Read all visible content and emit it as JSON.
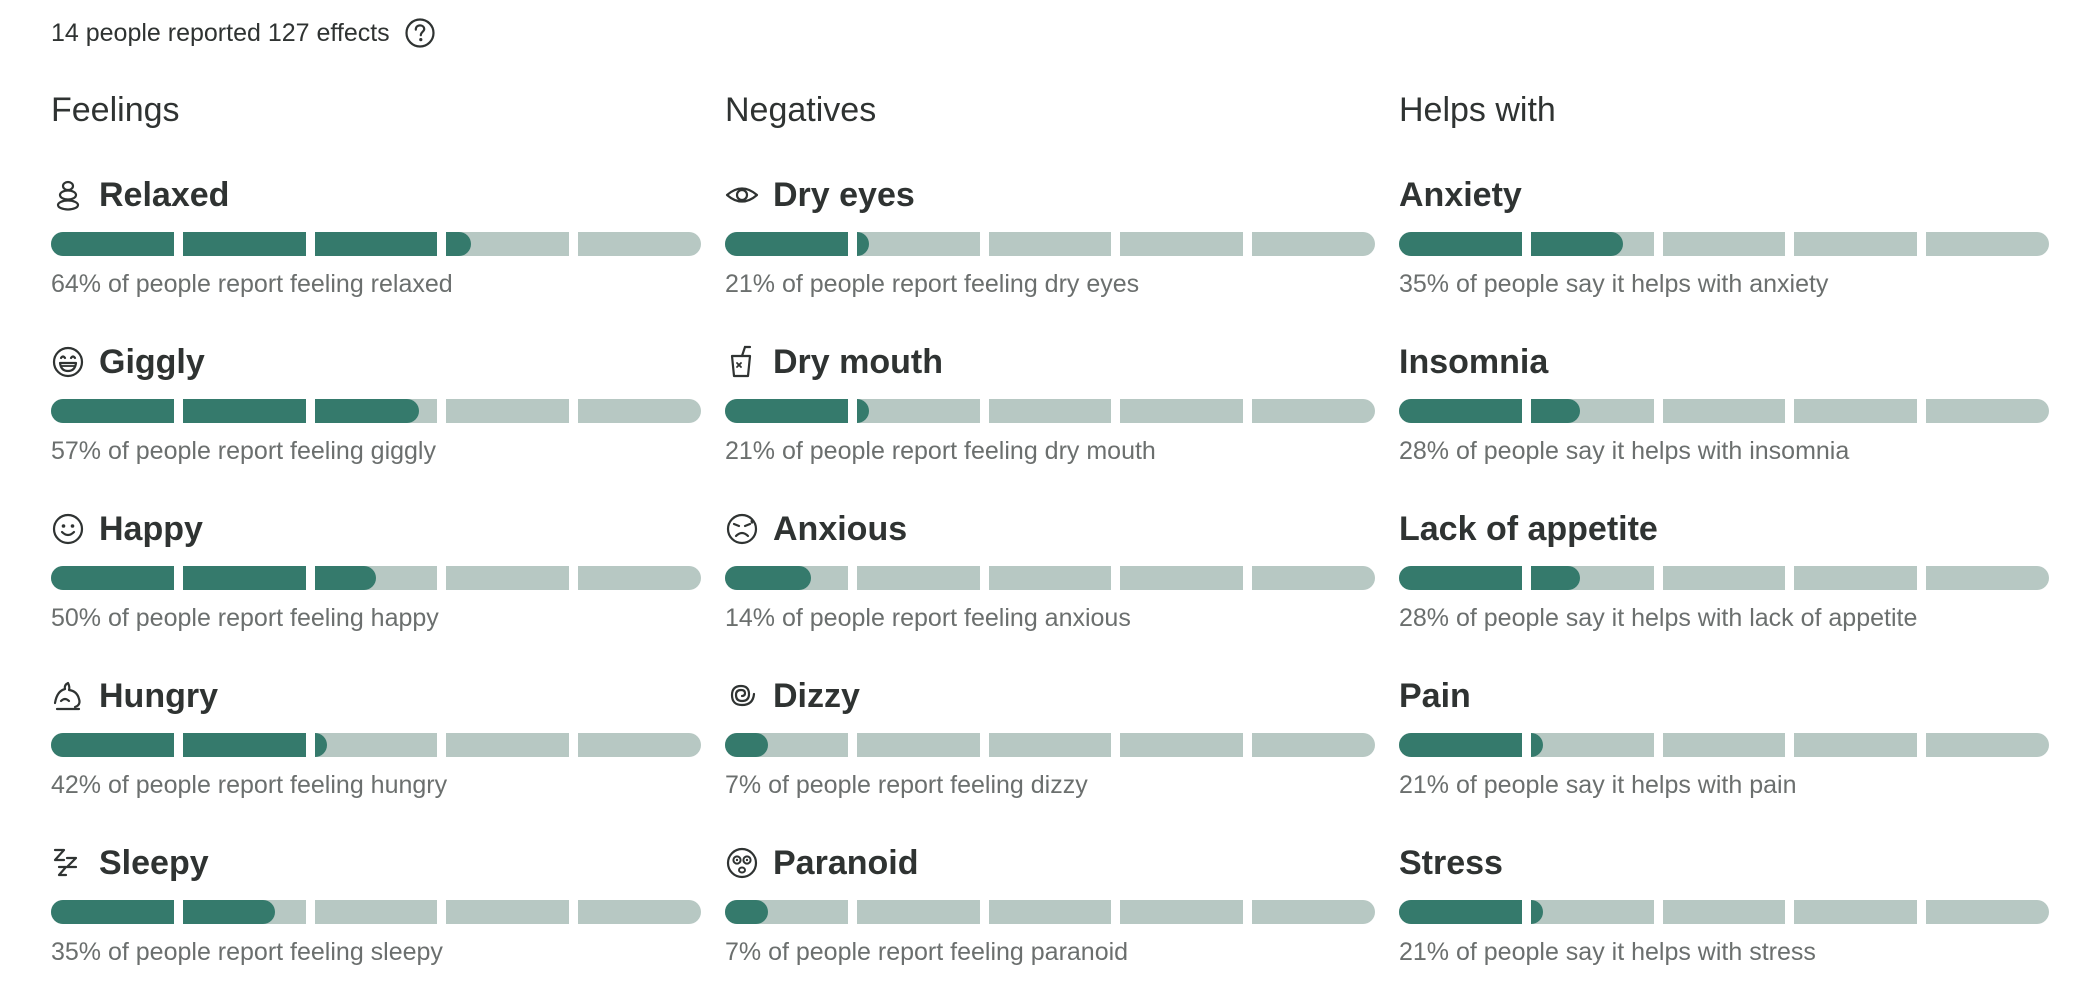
{
  "summary": {
    "text": "14 people reported 127 effects",
    "help_icon": "question-circle-icon"
  },
  "colors": {
    "fill": "#357a6c",
    "track": "#b7c8c3"
  },
  "columns": [
    {
      "title": "Feelings",
      "items": [
        {
          "name": "Relaxed",
          "icon": "stacked-stones-icon",
          "percent": 64,
          "caption": "64% of people report feeling relaxed"
        },
        {
          "name": "Giggly",
          "icon": "laughing-face-icon",
          "percent": 57,
          "caption": "57% of people report feeling giggly"
        },
        {
          "name": "Happy",
          "icon": "smiling-face-icon",
          "percent": 50,
          "caption": "50% of people report feeling happy"
        },
        {
          "name": "Hungry",
          "icon": "hungry-icon",
          "percent": 42,
          "caption": "42% of people report feeling hungry"
        },
        {
          "name": "Sleepy",
          "icon": "zzz-icon",
          "percent": 35,
          "caption": "35% of people report feeling sleepy"
        }
      ]
    },
    {
      "title": "Negatives",
      "items": [
        {
          "name": "Dry eyes",
          "icon": "eye-icon",
          "percent": 21,
          "caption": "21% of people report feeling dry eyes"
        },
        {
          "name": "Dry mouth",
          "icon": "cup-icon",
          "percent": 21,
          "caption": "21% of people report feeling dry mouth"
        },
        {
          "name": "Anxious",
          "icon": "anxious-face-icon",
          "percent": 14,
          "caption": "14% of people report feeling anxious"
        },
        {
          "name": "Dizzy",
          "icon": "spiral-icon",
          "percent": 7,
          "caption": "7% of people report feeling dizzy"
        },
        {
          "name": "Paranoid",
          "icon": "paranoid-face-icon",
          "percent": 7,
          "caption": "7% of people report feeling paranoid"
        }
      ]
    },
    {
      "title": "Helps with",
      "items": [
        {
          "name": "Anxiety",
          "icon": "",
          "percent": 35,
          "caption": "35% of people say it helps with anxiety"
        },
        {
          "name": "Insomnia",
          "icon": "",
          "percent": 28,
          "caption": "28% of people say it helps with insomnia"
        },
        {
          "name": "Lack of appetite",
          "icon": "",
          "percent": 28,
          "caption": "28% of people say it helps with lack of appetite"
        },
        {
          "name": "Pain",
          "icon": "",
          "percent": 21,
          "caption": "21% of people say it helps with pain"
        },
        {
          "name": "Stress",
          "icon": "",
          "percent": 21,
          "caption": "21% of people say it helps with stress"
        }
      ]
    }
  ]
}
